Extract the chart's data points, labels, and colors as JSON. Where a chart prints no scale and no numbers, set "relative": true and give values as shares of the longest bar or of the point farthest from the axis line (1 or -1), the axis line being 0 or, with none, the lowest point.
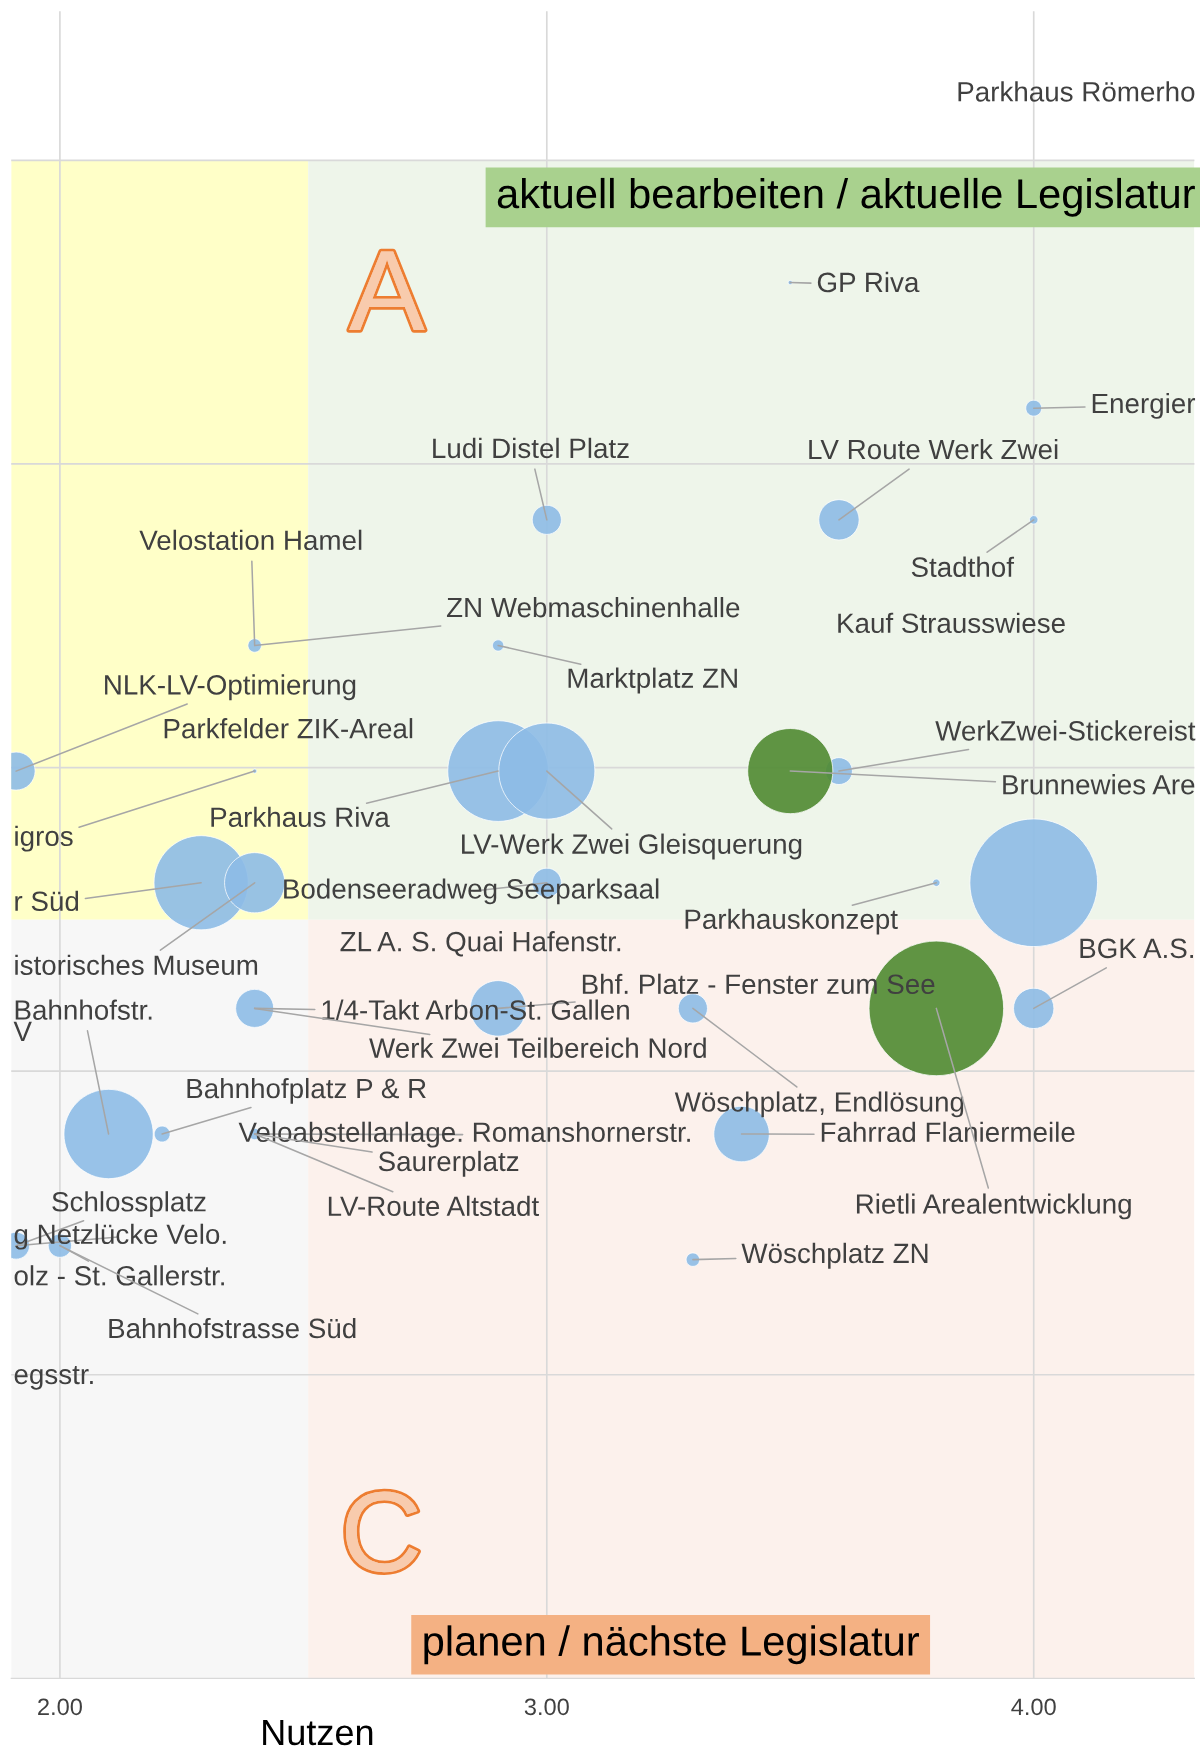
{
  "chart_data": {
    "type": "bubble",
    "relative": true,
    "xlabel": "Nutzen",
    "xlim": [
      1.9,
      4.33
    ],
    "xticks": [
      {
        "value": 2,
        "label": "2.00"
      },
      {
        "value": 3,
        "label": "3.00"
      },
      {
        "value": 4,
        "label": "4.00"
      }
    ],
    "grid": true,
    "tick_labels": "x",
    "marker": "circle",
    "series": [
      {
        "color": "#8dbbe6",
        "x": [
          3.5,
          4.0,
          3.0,
          3.6,
          4.0,
          2.4,
          2.9,
          1.91,
          2.4,
          2.9,
          3.0,
          3.6,
          2.29,
          2.4,
          3.0,
          3.8,
          4.0,
          4.0,
          2.9,
          2.4,
          3.3,
          2.1,
          2.21,
          2.4,
          3.4,
          1.91,
          2.0,
          3.3
        ],
        "values": [
          1.0,
          0.91,
          0.83,
          0.83,
          0.83,
          0.74,
          0.74,
          0.65,
          0.65,
          0.65,
          0.65,
          0.65,
          0.57,
          0.57,
          0.57,
          0.57,
          0.57,
          0.48,
          0.48,
          0.48,
          0.48,
          0.39,
          0.39,
          0.39,
          0.39,
          0.31,
          0.31,
          0.3
        ],
        "sizes": [
          0.001,
          0.014,
          0.047,
          0.09,
          0.004,
          0.01,
          0.007,
          0.08,
          0.001,
          0.56,
          0.51,
          0.04,
          0.49,
          0.2,
          0.047,
          0.003,
          0.9,
          0.09,
          0.17,
          0.08,
          0.047,
          0.44,
          0.014,
          0.007,
          0.17,
          0.04,
          0.03,
          0.01
        ]
      },
      {
        "color": "#4f8a31",
        "x": [
          3.5,
          3.8
        ],
        "values": [
          0.65,
          0.48
        ],
        "sizes": [
          0.4,
          1
        ]
      }
    ],
    "annotations": [
      "Parkhaus Römerho",
      "aktuell bearbeiten / aktuelle Legislatur",
      "A",
      {
        "text": "GP Riva",
        "x": 3.5,
        "y": 1.0
      },
      {
        "text": "Energier",
        "x": 4.0,
        "y": 0.91
      },
      {
        "text": "Ludi Distel Platz",
        "x": 3.0,
        "y": 0.83
      },
      {
        "text": "LV Route Werk Zwei",
        "x": 3.6,
        "y": 0.83
      },
      {
        "text": "Stadthof",
        "x": 4.0,
        "y": 0.83
      },
      "Kauf Strausswiese",
      {
        "text": "Velostation Hamel",
        "x": 2.4,
        "y": 0.74
      },
      {
        "text": "ZN Webmaschinenhalle",
        "x": 2.4,
        "y": 0.74
      },
      {
        "text": "Marktplatz ZN",
        "x": 2.9,
        "y": 0.74
      },
      {
        "text": "NLK-LV-Optimierung",
        "x": 1.91,
        "y": 0.65
      },
      "Parkfelder ZIK-Areal",
      {
        "text": "WerkZwei-Stickereist",
        "x": 3.6,
        "y": 0.65
      },
      {
        "text": "Brunnewies Are",
        "x": 3.5,
        "y": 0.65
      },
      {
        "text": "Parkhaus Riva",
        "x": 2.9,
        "y": 0.65
      },
      {
        "text": "igros",
        "x": 2.4,
        "y": 0.65
      },
      {
        "text": "LV-Werk Zwei Gleisquerung",
        "x": 3.0,
        "y": 0.65
      },
      {
        "text": "Bodenseeradweg Seeparksaal",
        "x": 3.0,
        "y": 0.57
      },
      {
        "text": "Parkhauskonzept",
        "x": 3.8,
        "y": 0.57
      },
      {
        "text": "r Süd",
        "x": 2.29,
        "y": 0.57
      },
      {
        "text": "istorisches Museum",
        "x": 2.4,
        "y": 0.57
      },
      "ZL A. S. Quai Hafenstr.",
      {
        "text": "Bhf. Platz - Fenster zum See",
        "x": 2.9,
        "y": 0.48
      },
      {
        "text": "BGK A.S.",
        "x": 4.0,
        "y": 0.48
      },
      {
        "text": "1/4-Takt Arbon-St. Gallen",
        "x": 2.4,
        "y": 0.48
      },
      {
        "text": "Bahnhofstr.",
        "x": 2.1,
        "y": 0.39
      },
      "V",
      {
        "text": "Werk Zwei Teilbereich Nord",
        "x": 2.4,
        "y": 0.48
      },
      {
        "text": "Bahnhofplatz P & R",
        "x": 2.21,
        "y": 0.39
      },
      {
        "text": "Wöschplatz, Endlösung",
        "x": 3.3,
        "y": 0.48
      },
      {
        "text": "Veloabstellanlage. Romanshornerstr.",
        "x": 2.4,
        "y": 0.39
      },
      {
        "text": "Fahrrad Flaniermeile",
        "x": 3.4,
        "y": 0.39
      },
      {
        "text": "Saurerplatz",
        "x": 2.4,
        "y": 0.39
      },
      {
        "text": "LV-Route Altstadt",
        "x": 2.4,
        "y": 0.39
      },
      {
        "text": "Rietli Arealentwicklung",
        "x": 3.8,
        "y": 0.48
      },
      {
        "text": "Schlossplatz",
        "x": 1.91,
        "y": 0.31
      },
      {
        "text": "g Netzlücke Velo.",
        "x": 1.91,
        "y": 0.31
      },
      {
        "text": "olz - St. Gallerstr.",
        "x": 2.0,
        "y": 0.31
      },
      {
        "text": "Wöschplatz ZN",
        "x": 3.3,
        "y": 0.3
      },
      {
        "text": "Bahnhofstrasse Süd",
        "x": 2.0,
        "y": 0.31
      },
      "egsstr.",
      "C",
      "planen / nächste Legislatur"
    ]
  }
}
